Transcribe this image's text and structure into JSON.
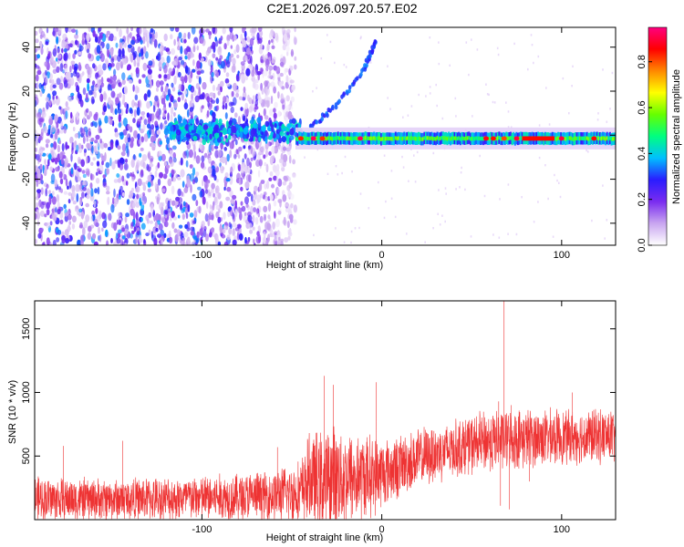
{
  "title": "C2E1.2026.097.20.57.E02",
  "chart_data": [
    {
      "type": "heatmap",
      "name": "spectrogram",
      "xlabel": "Height of straight line (km)",
      "ylabel": "Frequency (Hz)",
      "xlim": [
        -193,
        130
      ],
      "ylim": [
        -50,
        49
      ],
      "xticks": [
        -100,
        0,
        100
      ],
      "yticks": [
        -40,
        -20,
        0,
        20,
        40
      ],
      "noise_region_x": [
        -193,
        -48
      ],
      "signal_line_frequency_hz": -1.5,
      "signal_line_x": [
        -48,
        130
      ],
      "diverging_branch": [
        [
          -40,
          4
        ],
        [
          -30,
          10
        ],
        [
          -20,
          19
        ],
        [
          -10,
          30
        ],
        [
          -6,
          37
        ],
        [
          -3,
          43
        ]
      ],
      "hot_spots_x": [
        -45,
        -38,
        -33,
        -12,
        58,
        62,
        68,
        75,
        100,
        118
      ],
      "colorbar": {
        "label": "Normalized spectral amplitude",
        "range": [
          0,
          0.95
        ],
        "ticks": [
          0.0,
          0.2,
          0.4,
          0.6,
          0.8
        ],
        "tick_labels": [
          "0.0",
          "0.2",
          "0.4",
          "0.6",
          "0.8"
        ],
        "colors": [
          "#ffffff",
          "#c9a6f0",
          "#7a2cf0",
          "#2a1cff",
          "#00bfff",
          "#00ff80",
          "#66ff00",
          "#ffff00",
          "#ff8800",
          "#ff0000",
          "#ff0080"
        ]
      }
    },
    {
      "type": "line",
      "name": "snr-trace",
      "xlabel": "Height of straight line (km)",
      "ylabel": "SNR (10 * v/v)",
      "xlim": [
        -193,
        130
      ],
      "ylim": [
        0,
        1720
      ],
      "xticks": [
        -100,
        0,
        100
      ],
      "yticks": [
        500,
        1000,
        1500
      ],
      "color": "#ee3333",
      "envelope": {
        "x": [
          -193,
          -150,
          -100,
          -60,
          -45,
          -40,
          -35,
          -25,
          -15,
          -5,
          5,
          20,
          40,
          60,
          80,
          100,
          130
        ],
        "base": [
          160,
          160,
          170,
          190,
          220,
          330,
          280,
          340,
          330,
          350,
          390,
          480,
          560,
          620,
          640,
          650,
          660
        ],
        "amp": [
          200,
          180,
          200,
          220,
          280,
          400,
          450,
          450,
          400,
          350,
          280,
          260,
          250,
          270,
          260,
          240,
          240
        ]
      },
      "spikes": [
        [
          -177,
          580
        ],
        [
          -144,
          620
        ],
        [
          -58,
          570
        ],
        [
          -32,
          1130
        ],
        [
          -27,
          1060
        ],
        [
          -3,
          1080
        ],
        [
          68,
          1720
        ],
        [
          65,
          930
        ],
        [
          72,
          900
        ],
        [
          106,
          1000
        ]
      ],
      "dips": [
        [
          -6,
          150
        ],
        [
          22,
          400
        ],
        [
          66,
          110
        ],
        [
          71,
          80
        ],
        [
          82,
          300
        ]
      ]
    }
  ]
}
